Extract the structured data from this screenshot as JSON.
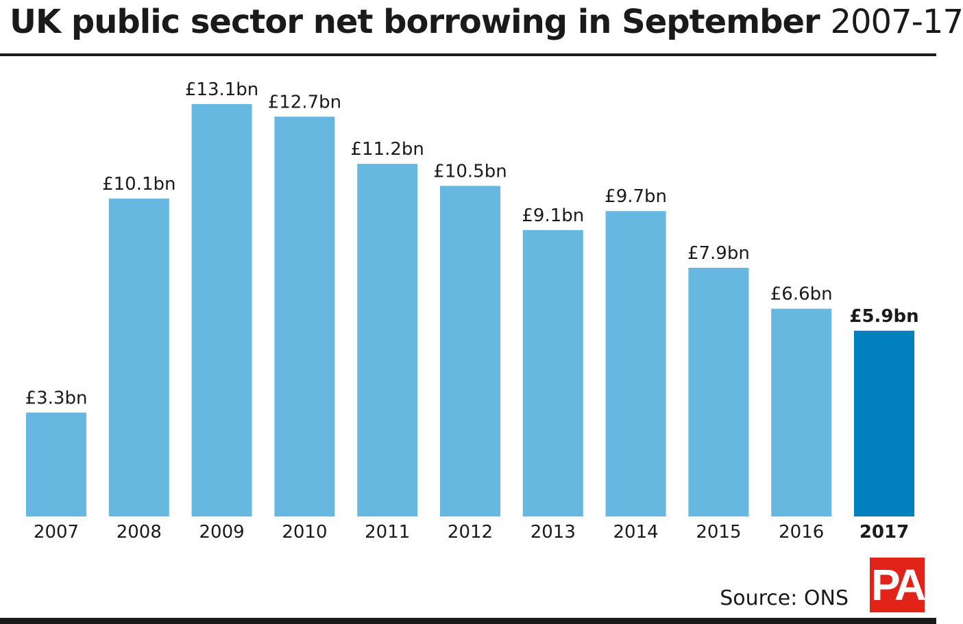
{
  "title": {
    "bold": "UK public sector net borrowing in September",
    "light": "2007-17"
  },
  "source": "Source: ONS",
  "logo": "PA",
  "colors": {
    "bar": "#66b8e1",
    "highlight": "#0080bc",
    "text": "#1a1a1a"
  },
  "chart_data": {
    "type": "bar",
    "categories": [
      "2007",
      "2008",
      "2009",
      "2010",
      "2011",
      "2012",
      "2013",
      "2014",
      "2015",
      "2016",
      "2017"
    ],
    "values": [
      3.3,
      10.1,
      13.1,
      12.7,
      11.2,
      10.5,
      9.1,
      9.7,
      7.9,
      6.6,
      5.9
    ],
    "labels": [
      "£3.3bn",
      "£10.1bn",
      "£13.1bn",
      "£12.7bn",
      "£11.2bn",
      "£10.5bn",
      "£9.1bn",
      "£9.7bn",
      "£7.9bn",
      "£6.6bn",
      "£5.9bn"
    ],
    "highlight_index": 10,
    "ylim": [
      0,
      14
    ],
    "grid": false,
    "xlabel": "",
    "ylabel": ""
  }
}
